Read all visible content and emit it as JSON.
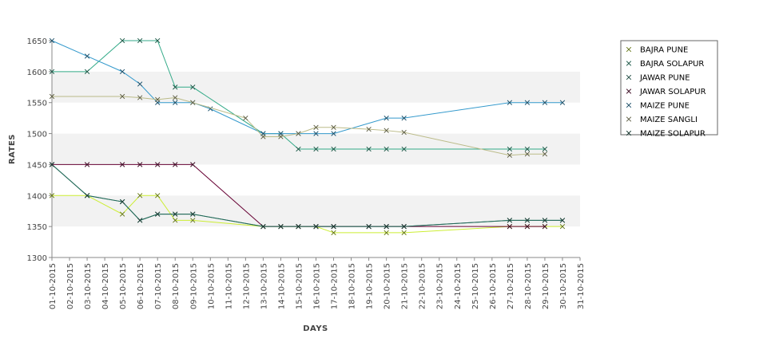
{
  "chart_data": {
    "type": "line",
    "xlabel": "DAYS",
    "ylabel": "RATES",
    "ylim": [
      1300,
      1650
    ],
    "yticks": [
      1300,
      1350,
      1400,
      1450,
      1500,
      1550,
      1600,
      1650
    ],
    "x_range": [
      "01-10-2015",
      "31-10-2015"
    ],
    "categories": [
      "01-10-2015",
      "02-10-2015",
      "03-10-2015",
      "04-10-2015",
      "05-10-2015",
      "06-10-2015",
      "07-10-2015",
      "08-10-2015",
      "09-10-2015",
      "10-10-2015",
      "11-10-2015",
      "12-10-2015",
      "13-10-2015",
      "14-10-2015",
      "15-10-2015",
      "16-10-2015",
      "17-10-2015",
      "18-10-2015",
      "19-10-2015",
      "20-10-2015",
      "21-10-2015",
      "22-10-2015",
      "23-10-2015",
      "24-10-2015",
      "25-10-2015",
      "26-10-2015",
      "27-10-2015",
      "28-10-2015",
      "29-10-2015",
      "30-10-2015",
      "31-10-2015"
    ],
    "grid": "alternating horizontal bands",
    "legend_position": "right",
    "series": [
      {
        "name": "BAJRA PUNE",
        "color": "#ccee33",
        "points": [
          [
            "01-10-2015",
            1400
          ],
          [
            "03-10-2015",
            1400
          ],
          [
            "05-10-2015",
            1370
          ],
          [
            "06-10-2015",
            1400
          ],
          [
            "07-10-2015",
            1400
          ],
          [
            "08-10-2015",
            1360
          ],
          [
            "09-10-2015",
            1360
          ],
          [
            "13-10-2015",
            1350
          ],
          [
            "14-10-2015",
            1350
          ],
          [
            "15-10-2015",
            1350
          ],
          [
            "16-10-2015",
            1350
          ],
          [
            "17-10-2015",
            1340
          ],
          [
            "20-10-2015",
            1340
          ],
          [
            "21-10-2015",
            1340
          ],
          [
            "27-10-2015",
            1350
          ],
          [
            "28-10-2015",
            1350
          ],
          [
            "29-10-2015",
            1350
          ],
          [
            "30-10-2015",
            1350
          ]
        ]
      },
      {
        "name": "BAJRA SOLAPUR",
        "color": "#33aa88",
        "points": [
          [
            "01-10-2015",
            1600
          ],
          [
            "03-10-2015",
            1600
          ],
          [
            "05-10-2015",
            1650
          ],
          [
            "06-10-2015",
            1650
          ],
          [
            "07-10-2015",
            1650
          ],
          [
            "08-10-2015",
            1575
          ],
          [
            "09-10-2015",
            1575
          ],
          [
            "13-10-2015",
            1500
          ],
          [
            "14-10-2015",
            1500
          ],
          [
            "15-10-2015",
            1475
          ],
          [
            "16-10-2015",
            1475
          ],
          [
            "17-10-2015",
            1475
          ],
          [
            "19-10-2015",
            1475
          ],
          [
            "20-10-2015",
            1475
          ],
          [
            "21-10-2015",
            1475
          ],
          [
            "27-10-2015",
            1475
          ],
          [
            "28-10-2015",
            1475
          ],
          [
            "29-10-2015",
            1475
          ]
        ]
      },
      {
        "name": "JAWAR PUNE",
        "color": "#449988",
        "points": [
          [
            "01-10-2015",
            1450
          ],
          [
            "03-10-2015",
            1400
          ],
          [
            "05-10-2015",
            1390
          ],
          [
            "06-10-2015",
            1360
          ],
          [
            "07-10-2015",
            1370
          ],
          [
            "08-10-2015",
            1370
          ],
          [
            "09-10-2015",
            1370
          ],
          [
            "13-10-2015",
            1350
          ],
          [
            "14-10-2015",
            1350
          ],
          [
            "15-10-2015",
            1350
          ],
          [
            "16-10-2015",
            1350
          ],
          [
            "17-10-2015",
            1350
          ],
          [
            "19-10-2015",
            1350
          ],
          [
            "20-10-2015",
            1350
          ],
          [
            "21-10-2015",
            1350
          ],
          [
            "27-10-2015",
            1360
          ],
          [
            "28-10-2015",
            1360
          ],
          [
            "29-10-2015",
            1360
          ],
          [
            "30-10-2015",
            1360
          ]
        ]
      },
      {
        "name": "JAWAR SOLAPUR",
        "color": "#660033",
        "points": [
          [
            "01-10-2015",
            1450
          ],
          [
            "03-10-2015",
            1450
          ],
          [
            "05-10-2015",
            1450
          ],
          [
            "06-10-2015",
            1450
          ],
          [
            "07-10-2015",
            1450
          ],
          [
            "08-10-2015",
            1450
          ],
          [
            "09-10-2015",
            1450
          ],
          [
            "13-10-2015",
            1350
          ],
          [
            "14-10-2015",
            1350
          ],
          [
            "15-10-2015",
            1350
          ],
          [
            "16-10-2015",
            1350
          ],
          [
            "17-10-2015",
            1350
          ],
          [
            "19-10-2015",
            1350
          ],
          [
            "20-10-2015",
            1350
          ],
          [
            "21-10-2015",
            1350
          ],
          [
            "27-10-2015",
            1350
          ],
          [
            "28-10-2015",
            1350
          ],
          [
            "29-10-2015",
            1350
          ]
        ]
      },
      {
        "name": "MAIZE PUNE",
        "color": "#3399cc",
        "points": [
          [
            "01-10-2015",
            1650
          ],
          [
            "03-10-2015",
            1625
          ],
          [
            "05-10-2015",
            1600
          ],
          [
            "06-10-2015",
            1580
          ],
          [
            "07-10-2015",
            1550
          ],
          [
            "08-10-2015",
            1550
          ],
          [
            "09-10-2015",
            1550
          ],
          [
            "10-10-2015",
            1540
          ],
          [
            "13-10-2015",
            1500
          ],
          [
            "14-10-2015",
            1500
          ],
          [
            "15-10-2015",
            1500
          ],
          [
            "16-10-2015",
            1500
          ],
          [
            "17-10-2015",
            1500
          ],
          [
            "20-10-2015",
            1525
          ],
          [
            "21-10-2015",
            1525
          ],
          [
            "27-10-2015",
            1550
          ],
          [
            "28-10-2015",
            1550
          ],
          [
            "29-10-2015",
            1550
          ],
          [
            "30-10-2015",
            1550
          ]
        ]
      },
      {
        "name": "MAIZE SANGLI",
        "color": "#bbbb88",
        "points": [
          [
            "01-10-2015",
            1560
          ],
          [
            "05-10-2015",
            1560
          ],
          [
            "06-10-2015",
            1558
          ],
          [
            "07-10-2015",
            1555
          ],
          [
            "08-10-2015",
            1558
          ],
          [
            "09-10-2015",
            1550
          ],
          [
            "12-10-2015",
            1525
          ],
          [
            "13-10-2015",
            1495
          ],
          [
            "14-10-2015",
            1495
          ],
          [
            "15-10-2015",
            1500
          ],
          [
            "16-10-2015",
            1510
          ],
          [
            "17-10-2015",
            1510
          ],
          [
            "19-10-2015",
            1507
          ],
          [
            "20-10-2015",
            1505
          ],
          [
            "21-10-2015",
            1502
          ],
          [
            "27-10-2015",
            1465
          ],
          [
            "28-10-2015",
            1467
          ],
          [
            "29-10-2015",
            1467
          ]
        ]
      },
      {
        "name": "MAIZE SOLAPUR",
        "color": "#226655",
        "points": [
          [
            "01-10-2015",
            1450
          ],
          [
            "03-10-2015",
            1400
          ],
          [
            "05-10-2015",
            1390
          ],
          [
            "06-10-2015",
            1360
          ],
          [
            "07-10-2015",
            1370
          ],
          [
            "08-10-2015",
            1370
          ],
          [
            "09-10-2015",
            1370
          ],
          [
            "13-10-2015",
            1350
          ],
          [
            "14-10-2015",
            1350
          ],
          [
            "15-10-2015",
            1350
          ],
          [
            "16-10-2015",
            1350
          ],
          [
            "17-10-2015",
            1350
          ],
          [
            "19-10-2015",
            1350
          ],
          [
            "20-10-2015",
            1350
          ],
          [
            "21-10-2015",
            1350
          ],
          [
            "27-10-2015",
            1360
          ],
          [
            "28-10-2015",
            1360
          ],
          [
            "29-10-2015",
            1360
          ],
          [
            "30-10-2015",
            1360
          ]
        ]
      }
    ]
  }
}
